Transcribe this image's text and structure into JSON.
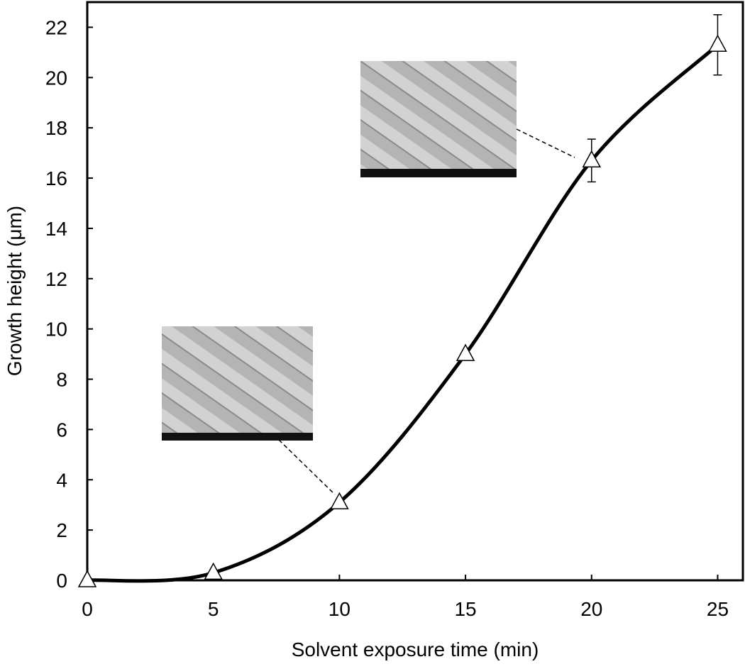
{
  "chart_data": {
    "type": "line",
    "xlabel": "Solvent exposure time (min)",
    "ylabel": "Growth height (μm)",
    "x": [
      0,
      5,
      10,
      15,
      20,
      25
    ],
    "series": [
      {
        "color": "#000000",
        "values": [
          0,
          0.3,
          3.1,
          9,
          16.7,
          21.3
        ],
        "errors": [
          null,
          null,
          null,
          null,
          0.85,
          1.2
        ]
      }
    ],
    "xlim": [
      0,
      26
    ],
    "xticks": [
      0,
      5,
      10,
      15,
      20,
      25
    ],
    "ylim": [
      0,
      23
    ],
    "yticks": [
      0,
      2,
      4,
      6,
      8,
      10,
      12,
      14,
      16,
      18,
      20,
      22
    ]
  }
}
